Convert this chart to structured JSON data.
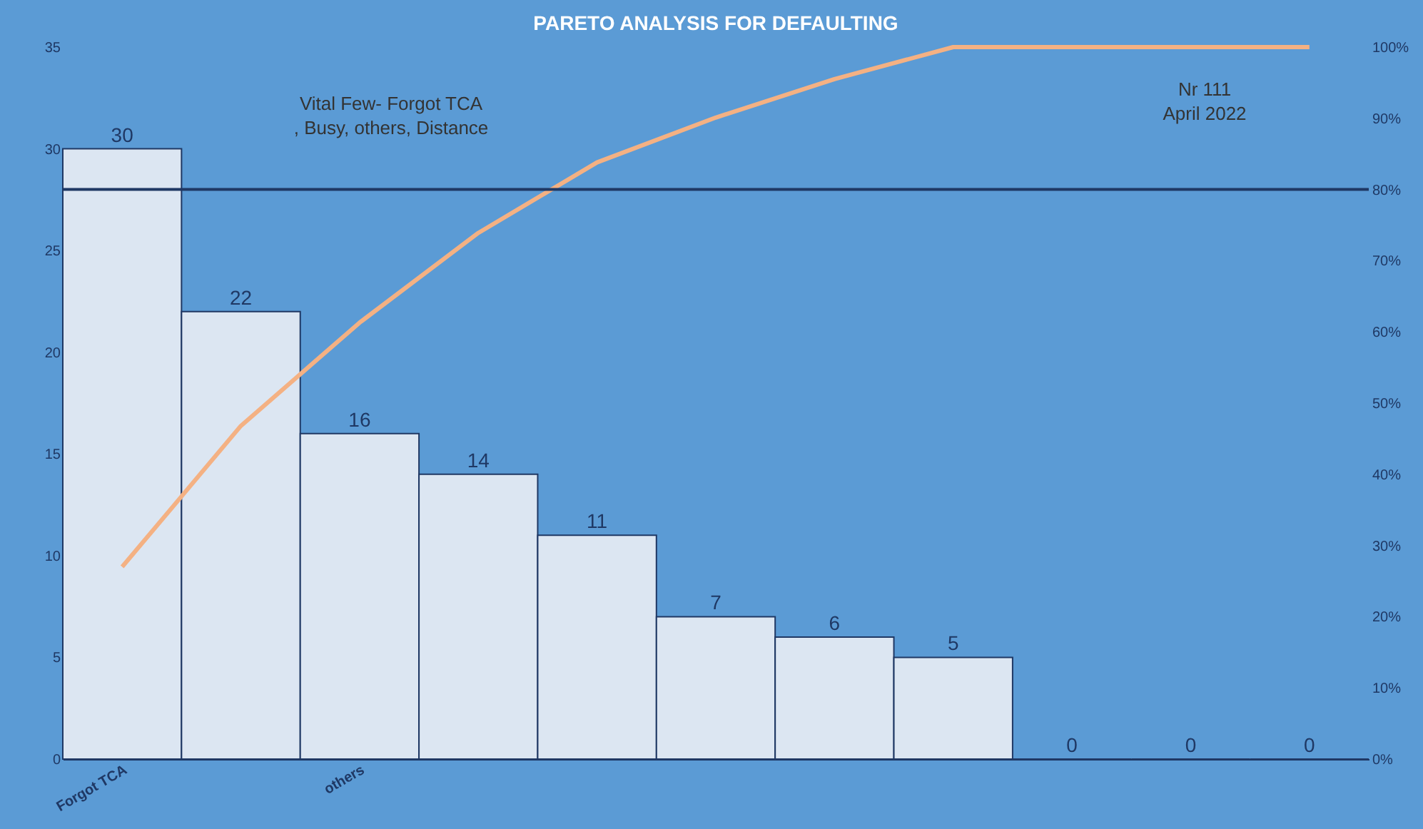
{
  "chart_data": {
    "type": "bar",
    "title": "PARETO ANALYSIS FOR DEFAULTING",
    "categories": [
      "Forgot TCA",
      null,
      "others",
      null,
      null,
      null,
      null,
      null,
      null,
      null,
      null
    ],
    "series": [
      {
        "color": "#dce6f2",
        "values": [
          30,
          22,
          16,
          14,
          11,
          7,
          6,
          5,
          0,
          0,
          0
        ],
        "value_labels": [
          "30",
          "22",
          "16",
          "14",
          "11",
          "7",
          "6",
          "5",
          "0",
          "0",
          "0"
        ]
      },
      {
        "type": "line",
        "axis": "y2",
        "color": "#f4b183",
        "values": [
          27.0,
          46.8,
          61.3,
          73.9,
          83.8,
          90.1,
          95.5,
          100,
          100,
          100,
          100
        ]
      }
    ],
    "ylim": [
      0,
      35
    ],
    "yticks": [
      0,
      5,
      10,
      15,
      20,
      25,
      30,
      35
    ],
    "y2lim": [
      0,
      100
    ],
    "y2ticks": [
      {
        "value": 0,
        "label": "0%"
      },
      {
        "value": 10,
        "label": "10%"
      },
      {
        "value": 20,
        "label": "20%"
      },
      {
        "value": 30,
        "label": "30%"
      },
      {
        "value": 40,
        "label": "40%"
      },
      {
        "value": 50,
        "label": "50%"
      },
      {
        "value": 60,
        "label": "60%"
      },
      {
        "value": 70,
        "label": "70%"
      },
      {
        "value": 80,
        "label": "80%"
      },
      {
        "value": 90,
        "label": "90%"
      },
      {
        "value": 100,
        "label": "100%"
      }
    ],
    "ref_lines": [
      {
        "axis": "y2",
        "value": 80,
        "color": "#1f3864"
      }
    ],
    "annotations": [
      "Vital Few- Forgot TCA, Busy, others, Distance",
      "Nr 111\nApril 2022"
    ],
    "grid": false
  }
}
